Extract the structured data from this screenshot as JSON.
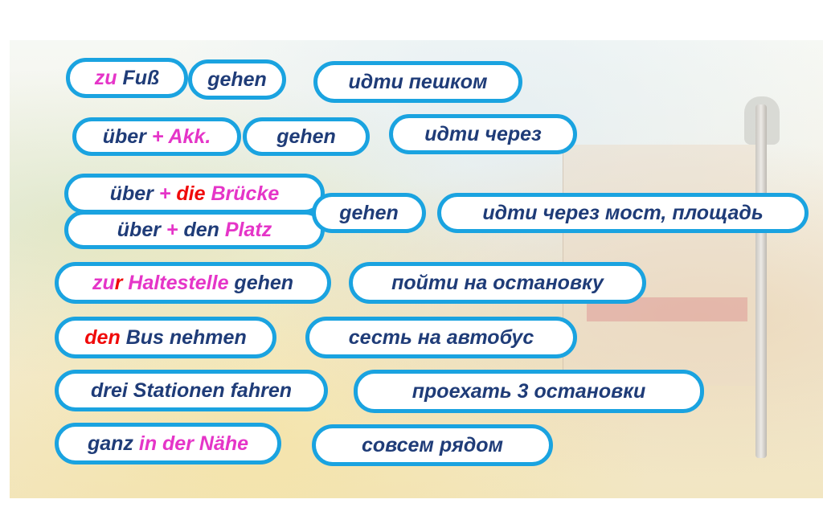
{
  "colors": {
    "text": "#1f3c78",
    "accent_pink": "#e535c8",
    "accent_red": "#f00a0a",
    "border": "#1aa3e0"
  },
  "pills": [
    {
      "segments": [
        {
          "text": "zu ",
          "color": "#e535c8"
        },
        {
          "text": "Fuß",
          "color": "#1f3c78"
        }
      ]
    },
    {
      "segments": [
        {
          "text": "gehen",
          "color": "#1f3c78"
        }
      ]
    },
    {
      "segments": [
        {
          "text": "идти пешком",
          "color": "#1f3c78"
        }
      ]
    },
    {
      "segments": [
        {
          "text": "über ",
          "color": "#1f3c78"
        },
        {
          "text": "+ Akk.",
          "color": "#e535c8"
        }
      ]
    },
    {
      "segments": [
        {
          "text": "gehen",
          "color": "#1f3c78"
        }
      ]
    },
    {
      "segments": [
        {
          "text": "идти через",
          "color": "#1f3c78"
        }
      ]
    },
    {
      "segments": [
        {
          "text": "über ",
          "color": "#1f3c78"
        },
        {
          "text": "+ ",
          "color": "#e535c8"
        },
        {
          "text": "die ",
          "color": "#f00a0a"
        },
        {
          "text": "Brücke",
          "color": "#e535c8"
        }
      ]
    },
    {
      "segments": [
        {
          "text": "über ",
          "color": "#1f3c78"
        },
        {
          "text": "+ ",
          "color": "#e535c8"
        },
        {
          "text": "den ",
          "color": "#1f3c78"
        },
        {
          "text": "Platz",
          "color": "#e535c8"
        }
      ]
    },
    {
      "segments": [
        {
          "text": "gehen",
          "color": "#1f3c78"
        }
      ]
    },
    {
      "segments": [
        {
          "text": "идти через мост, площадь",
          "color": "#1f3c78"
        }
      ]
    },
    {
      "segments": [
        {
          "text": "zu",
          "color": "#e535c8"
        },
        {
          "text": "r ",
          "color": "#f00a0a"
        },
        {
          "text": "Haltestelle ",
          "color": "#e535c8"
        },
        {
          "text": "gehen",
          "color": "#1f3c78"
        }
      ]
    },
    {
      "segments": [
        {
          "text": "пойти на остановку",
          "color": "#1f3c78"
        }
      ]
    },
    {
      "segments": [
        {
          "text": "den ",
          "color": "#f00a0a"
        },
        {
          "text": "Bus nehmen",
          "color": "#1f3c78"
        }
      ]
    },
    {
      "segments": [
        {
          "text": "сесть на автобус",
          "color": "#1f3c78"
        }
      ]
    },
    {
      "segments": [
        {
          "text": "drei Stationen fahren",
          "color": "#1f3c78"
        }
      ]
    },
    {
      "segments": [
        {
          "text": "проехать 3 остановки",
          "color": "#1f3c78"
        }
      ]
    },
    {
      "segments": [
        {
          "text": "ganz ",
          "color": "#1f3c78"
        },
        {
          "text": "in der Nähe",
          "color": "#e535c8"
        }
      ]
    },
    {
      "segments": [
        {
          "text": "совсем рядом",
          "color": "#1f3c78"
        }
      ]
    }
  ]
}
